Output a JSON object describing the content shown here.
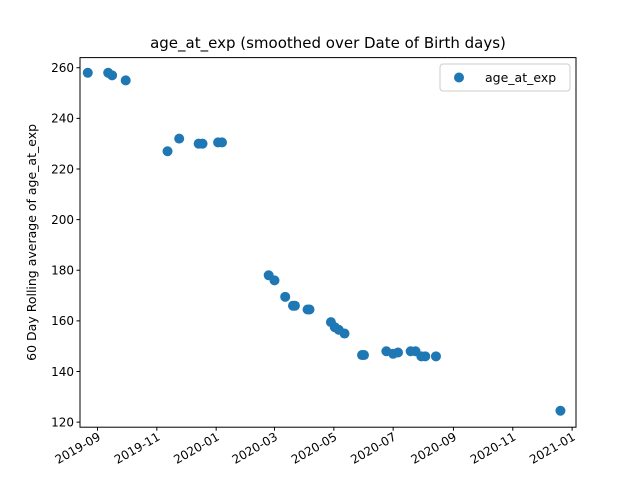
{
  "chart_data": {
    "type": "scatter",
    "title": "age_at_exp (smoothed over Date of Birth days)",
    "xlabel": "",
    "ylabel": "60 Day Rolling average of age_at_exp",
    "x_type": "date",
    "xlim": [
      "2019-08-14",
      "2021-01-05"
    ],
    "ylim": [
      118,
      264
    ],
    "x_ticks": [
      {
        "date": "2019-09-01",
        "label": "2019-09"
      },
      {
        "date": "2019-11-01",
        "label": "2019-11"
      },
      {
        "date": "2020-01-01",
        "label": "2020-01"
      },
      {
        "date": "2020-03-01",
        "label": "2020-03"
      },
      {
        "date": "2020-05-01",
        "label": "2020-05"
      },
      {
        "date": "2020-07-01",
        "label": "2020-07"
      },
      {
        "date": "2020-09-01",
        "label": "2020-09"
      },
      {
        "date": "2020-11-01",
        "label": "2020-11"
      },
      {
        "date": "2021-01-01",
        "label": "2021-01"
      }
    ],
    "y_ticks": [
      120,
      140,
      160,
      180,
      200,
      220,
      240,
      260
    ],
    "legend": {
      "position": "top-right"
    },
    "grid": false,
    "series": [
      {
        "name": "age_at_exp",
        "color": "#1f77b4",
        "points": [
          {
            "x": "2019-08-22",
            "y": 258
          },
          {
            "x": "2019-09-12",
            "y": 258
          },
          {
            "x": "2019-09-16",
            "y": 257
          },
          {
            "x": "2019-09-30",
            "y": 255
          },
          {
            "x": "2019-11-12",
            "y": 227
          },
          {
            "x": "2019-11-24",
            "y": 232
          },
          {
            "x": "2019-12-14",
            "y": 230
          },
          {
            "x": "2019-12-18",
            "y": 230
          },
          {
            "x": "2020-01-03",
            "y": 230.5
          },
          {
            "x": "2020-01-07",
            "y": 230.5
          },
          {
            "x": "2020-02-24",
            "y": 178
          },
          {
            "x": "2020-03-01",
            "y": 176
          },
          {
            "x": "2020-03-12",
            "y": 169.5
          },
          {
            "x": "2020-03-20",
            "y": 166
          },
          {
            "x": "2020-03-22",
            "y": 166
          },
          {
            "x": "2020-04-04",
            "y": 164.5
          },
          {
            "x": "2020-04-06",
            "y": 164.5
          },
          {
            "x": "2020-04-28",
            "y": 159.5
          },
          {
            "x": "2020-05-02",
            "y": 157.5
          },
          {
            "x": "2020-05-06",
            "y": 156.5
          },
          {
            "x": "2020-05-12",
            "y": 155
          },
          {
            "x": "2020-05-30",
            "y": 146.5
          },
          {
            "x": "2020-06-01",
            "y": 146.5
          },
          {
            "x": "2020-06-24",
            "y": 148
          },
          {
            "x": "2020-07-01",
            "y": 147
          },
          {
            "x": "2020-07-06",
            "y": 147.5
          },
          {
            "x": "2020-07-19",
            "y": 148
          },
          {
            "x": "2020-07-24",
            "y": 148
          },
          {
            "x": "2020-07-30",
            "y": 146
          },
          {
            "x": "2020-08-03",
            "y": 146
          },
          {
            "x": "2020-08-14",
            "y": 146
          },
          {
            "x": "2020-12-20",
            "y": 124.5
          }
        ]
      }
    ]
  }
}
